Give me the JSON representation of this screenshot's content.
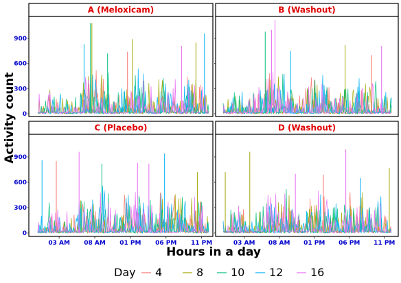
{
  "chart_data": {
    "type": "line",
    "xlabel": "Hours in a day",
    "ylabel": "Activity count",
    "y_ticks": [
      0,
      300,
      600,
      900
    ],
    "ylim": [
      0,
      1150
    ],
    "x_range_hours": [
      0,
      24
    ],
    "x_ticks": [
      {
        "hour": 3,
        "label": "03 AM"
      },
      {
        "hour": 8,
        "label": "08 AM"
      },
      {
        "hour": 13,
        "label": "01 PM"
      },
      {
        "hour": 18,
        "label": "06 PM"
      },
      {
        "hour": 23,
        "label": "11 PM"
      }
    ],
    "legend": {
      "title": "Day",
      "position": "bottom"
    },
    "series": [
      {
        "name": "4",
        "color": "#F8766D"
      },
      {
        "name": "8",
        "color": "#A3A500"
      },
      {
        "name": "10",
        "color": "#00BF7D"
      },
      {
        "name": "12",
        "color": "#00B0F6"
      },
      {
        "name": "16",
        "color": "#E76BF3"
      }
    ],
    "panels": [
      {
        "title": "A (Meloxicam)",
        "peaks": [
          {
            "series": "4",
            "x": 12.6,
            "y": 740
          },
          {
            "series": "8",
            "x": 7.6,
            "y": 1080
          },
          {
            "series": "8",
            "x": 13.3,
            "y": 890
          },
          {
            "series": "8",
            "x": 22.2,
            "y": 850
          },
          {
            "series": "10",
            "x": 7.4,
            "y": 1080
          },
          {
            "series": "10",
            "x": 9.8,
            "y": 720
          },
          {
            "series": "12",
            "x": 23.4,
            "y": 960
          },
          {
            "series": "12",
            "x": 6.5,
            "y": 830
          },
          {
            "series": "16",
            "x": 20.2,
            "y": 810
          }
        ]
      },
      {
        "title": "B (Washout)",
        "peaks": [
          {
            "series": "16",
            "x": 7.4,
            "y": 1120
          },
          {
            "series": "16",
            "x": 6.9,
            "y": 1000
          },
          {
            "series": "10",
            "x": 6.0,
            "y": 980
          },
          {
            "series": "8",
            "x": 17.4,
            "y": 820
          },
          {
            "series": "16",
            "x": 22.6,
            "y": 810
          },
          {
            "series": "12",
            "x": 9.6,
            "y": 750
          },
          {
            "series": "4",
            "x": 21.2,
            "y": 700
          }
        ]
      },
      {
        "title": "C (Placebo)",
        "peaks": [
          {
            "series": "16",
            "x": 5.8,
            "y": 960
          },
          {
            "series": "12",
            "x": 17.8,
            "y": 940
          },
          {
            "series": "12",
            "x": 0.6,
            "y": 860
          },
          {
            "series": "4",
            "x": 2.6,
            "y": 850
          },
          {
            "series": "16",
            "x": 14.0,
            "y": 830
          },
          {
            "series": "10",
            "x": 9.0,
            "y": 820
          },
          {
            "series": "16",
            "x": 15.6,
            "y": 820
          },
          {
            "series": "8",
            "x": 22.4,
            "y": 720
          }
        ]
      },
      {
        "title": "D (Washout)",
        "peaks": [
          {
            "series": "16",
            "x": 17.5,
            "y": 990
          },
          {
            "series": "8",
            "x": 3.8,
            "y": 960
          },
          {
            "series": "8",
            "x": 23.7,
            "y": 770
          },
          {
            "series": "8",
            "x": 0.3,
            "y": 720
          },
          {
            "series": "16",
            "x": 10.3,
            "y": 700
          },
          {
            "series": "12",
            "x": 19.6,
            "y": 650
          },
          {
            "series": "4",
            "x": 14.3,
            "y": 690
          }
        ]
      }
    ]
  }
}
